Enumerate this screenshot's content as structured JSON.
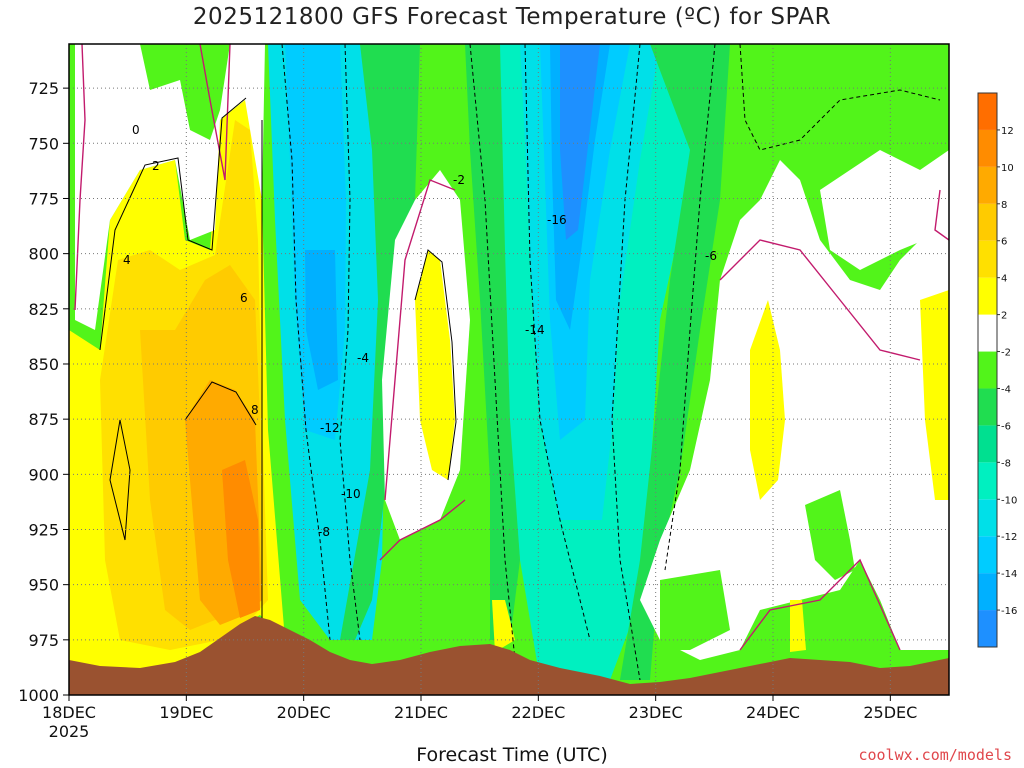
{
  "title": "2025121800 GFS Forecast Temperature (ºC) for SPAR",
  "xlabel": "Forecast Time (UTC)",
  "credit": "coolwx.com/models",
  "chart_data": {
    "type": "heatmap",
    "x_ticks": [
      "18DEC",
      "19DEC",
      "20DEC",
      "21DEC",
      "22DEC",
      "23DEC",
      "24DEC",
      "25DEC"
    ],
    "x_year_label": "2025",
    "y_ticks": [
      725,
      750,
      775,
      800,
      825,
      850,
      875,
      900,
      925,
      950,
      975,
      1000
    ],
    "y_axis": "pressure (hPa), inverted",
    "ylim": [
      1000,
      705
    ],
    "colorbar": {
      "levels": [
        -18,
        -16,
        -14,
        -12,
        -10,
        -8,
        -6,
        -4,
        -2,
        2,
        4,
        6,
        8,
        10,
        12,
        14
      ],
      "tick_labels": [
        "-16",
        "-14",
        "-12",
        "-10",
        "-8",
        "-6",
        "-4",
        "-2",
        "2",
        "4",
        "6",
        "8",
        "10",
        "12"
      ],
      "colors": [
        "#1e90ff",
        "#00b0ff",
        "#00ccff",
        "#00e0e8",
        "#00f0c0",
        "#00e090",
        "#20dd50",
        "#52f41a",
        "#ffffff",
        "#ffff00",
        "#ffe000",
        "#ffcb00",
        "#ffaa00",
        "#ff8c00",
        "#ff6e00"
      ]
    },
    "contour_labels": [
      "0",
      "2",
      "4",
      "6",
      "8",
      "-2",
      "-4",
      "-6",
      "-8",
      "-10",
      "-12",
      "-14",
      "-16"
    ],
    "terrain_color": "#9a5230",
    "grid": true
  }
}
